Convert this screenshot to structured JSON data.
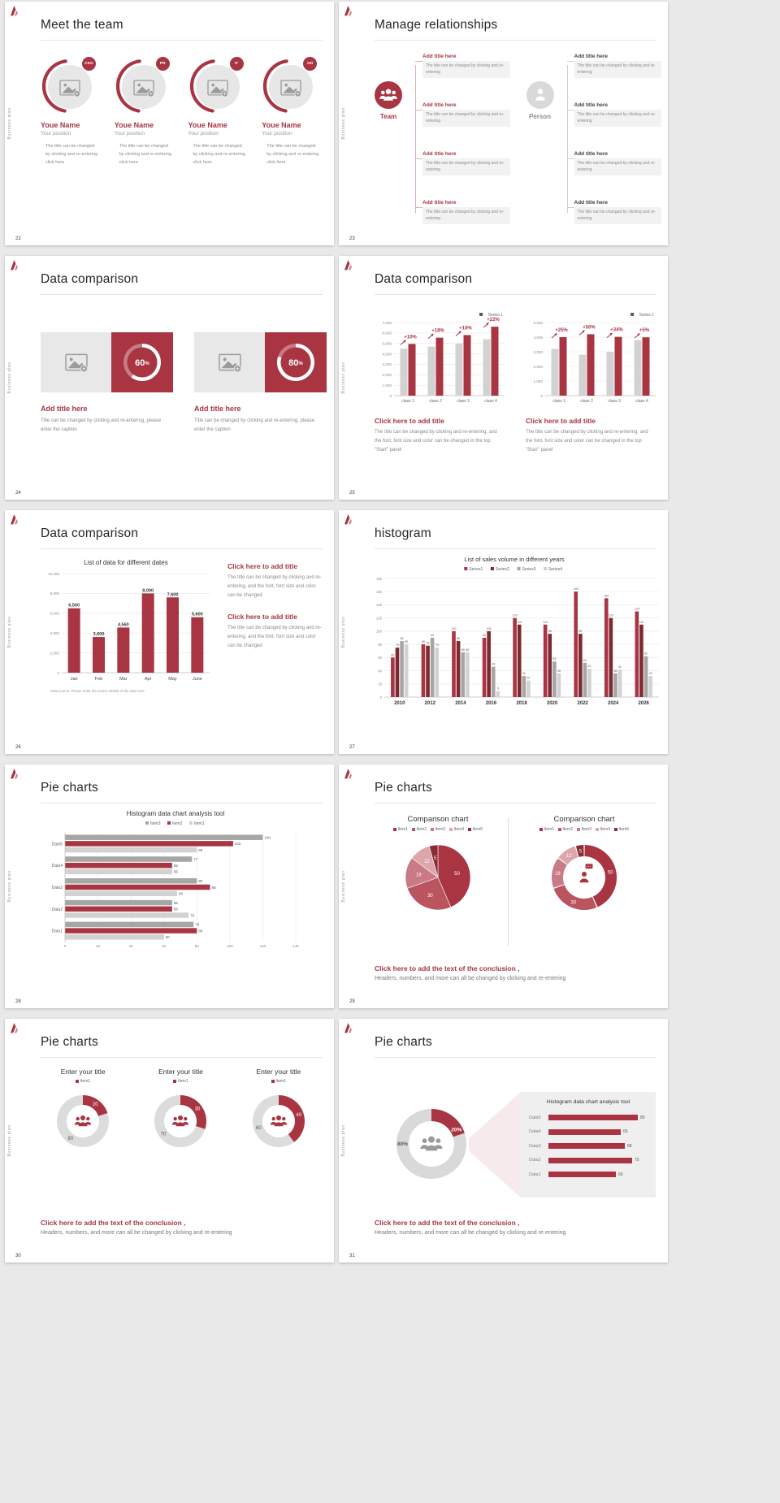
{
  "colors": {
    "accent": "#A93543",
    "accent_dark": "#7E2830",
    "gray": "#A6A6A6",
    "gray_light": "#D2D2D2",
    "page_bg": "#E9E9E9",
    "panel_bg": "#F0EFEF"
  },
  "sidebar_text": "Business plan",
  "icons": {
    "logo": "brand-mark",
    "team": "people-group-icon",
    "person": "person-icon",
    "avatar": "image-placeholder-icon",
    "donut_center": "people-group-icon",
    "donut29_center": "person-speaking-icon"
  },
  "conclusion": {
    "title": "Click here to add the text of the conclusion ,",
    "sub": "Headers, numbers, and more can all be changed by clicking and re-entering"
  },
  "slides": {
    "s22": {
      "page": "22",
      "title": "Meet the team",
      "members": [
        {
          "badge": "CEO",
          "name": "Youe Name",
          "position": "Your position",
          "desc": "The title can be changed by clicking and re-entering click here"
        },
        {
          "badge": "PR",
          "name": "Youe Name",
          "position": "Your position",
          "desc": "The title can be changed by clicking and re-entering click here"
        },
        {
          "badge": "IT",
          "name": "Youe Name",
          "position": "Your position",
          "desc": "The title can be changed by clicking and re-entering click here"
        },
        {
          "badge": "GD",
          "name": "Youe Name",
          "position": "Your position",
          "desc": "The title can be changed by clicking and re-entering click here"
        }
      ]
    },
    "s23": {
      "page": "23",
      "title": "Manage relationships",
      "team_label": "Team",
      "person_label": "Person",
      "item_title": "Add title here",
      "item_desc": "The title can be changed by clicking and re-entering"
    },
    "s24": {
      "page": "24",
      "title": "Data comparison",
      "card_title": "Add title here",
      "card_desc": "Title can be changed by clicking and re-entering, please enter the caption"
    },
    "s25": {
      "page": "25",
      "title": "Data comparison",
      "block_title": "Click here to add title",
      "block_desc": "The title can be changed by clicking and re-entering, and the font, font size and color can be changed in the top \"Start\" panel"
    },
    "s26": {
      "page": "26",
      "title": "Data comparison",
      "block_title": "Click here to add title",
      "block_desc": "The title can be changed by clicking and re-entering, and the font, font size and color can be changed"
    },
    "s27": {
      "page": "27",
      "title": "histogram"
    },
    "s28": {
      "page": "28",
      "title": "Pie charts"
    },
    "s29": {
      "page": "29",
      "title": "Pie charts"
    },
    "s30": {
      "page": "30",
      "title": "Pie charts"
    },
    "s31": {
      "page": "31",
      "title": "Pie charts"
    }
  },
  "chart_data": [
    {
      "id": "donut60",
      "type": "donut",
      "values": [
        60,
        40
      ],
      "center_label": "60%",
      "colors": [
        "#FFFFFF",
        "rgba(255,255,255,0.35)"
      ]
    },
    {
      "id": "donut80",
      "type": "donut",
      "values": [
        80,
        20
      ],
      "center_label": "80%",
      "colors": [
        "#FFFFFF",
        "rgba(255,255,255,0.35)"
      ]
    },
    {
      "id": "bars25a",
      "type": "bar",
      "legend": [
        {
          "label": "Series 1",
          "color": "#595959"
        }
      ],
      "categories": [
        "class 1",
        "class 2",
        "class 3",
        "class 4"
      ],
      "series": [
        {
          "name": "previous",
          "color": "#D2D2D2",
          "values": [
            4500,
            4700,
            5000,
            5400
          ]
        },
        {
          "name": "Series 1",
          "color": "#A93543",
          "values": [
            4950,
            5550,
            5800,
            6600
          ]
        }
      ],
      "annotations": [
        "+10%",
        "+18%",
        "+16%",
        "+22%"
      ],
      "ylim": [
        0,
        7000
      ],
      "ystep": 1000
    },
    {
      "id": "bars25b",
      "type": "bar",
      "legend": [
        {
          "label": "Series 1",
          "color": "#595959"
        }
      ],
      "categories": [
        "class 1",
        "class 2",
        "class 3",
        "class 4"
      ],
      "series": [
        {
          "name": "previous",
          "color": "#D2D2D2",
          "values": [
            3200,
            2800,
            3000,
            3800
          ]
        },
        {
          "name": "Series 1",
          "color": "#A93543",
          "values": [
            4000,
            4200,
            4020,
            3990
          ]
        }
      ],
      "annotations": [
        "+25%",
        "+50%",
        "+34%",
        "+5%"
      ],
      "ylim": [
        0,
        5000
      ],
      "ystep": 1000
    },
    {
      "id": "bars26",
      "type": "bar",
      "title": "List of data for different dates",
      "categories": [
        "Jan",
        "Feb",
        "Mar",
        "Apr",
        "May",
        "June"
      ],
      "series": [
        {
          "name": "data",
          "color": "#A93543",
          "values": [
            6500,
            3600,
            4560,
            8000,
            7600,
            5600
          ]
        }
      ],
      "ylim": [
        0,
        10000
      ],
      "ystep": 2000,
      "source": "Data source: Please enter the source details of the data here"
    },
    {
      "id": "bars27",
      "type": "bar",
      "title": "List of sales volume in different years",
      "legend": [
        {
          "label": "Series1",
          "color": "#A93543"
        },
        {
          "label": "Series2",
          "color": "#7E2830"
        },
        {
          "label": "Series3",
          "color": "#A6A6A6"
        },
        {
          "label": "Series4",
          "color": "#D2D2D2"
        }
      ],
      "categories": [
        "2010",
        "2012",
        "2014",
        "2016",
        "2018",
        "2020",
        "2022",
        "2024",
        "2026"
      ],
      "series": [
        {
          "name": "Series1",
          "color": "#A93543",
          "values": [
            60,
            80,
            100,
            90,
            120,
            110,
            160,
            150,
            130
          ]
        },
        {
          "name": "Series2",
          "color": "#7E2830",
          "values": [
            75,
            78,
            85,
            100,
            110,
            96,
            96,
            120,
            110
          ]
        },
        {
          "name": "Series3",
          "color": "#A6A6A6",
          "values": [
            85,
            90,
            68,
            46,
            32,
            54,
            52,
            36,
            62
          ]
        },
        {
          "name": "Series4",
          "color": "#D2D2D2",
          "values": [
            80,
            75,
            68,
            9,
            25,
            36,
            43,
            42,
            32
          ]
        }
      ],
      "ylim": [
        0,
        180
      ],
      "ystep": 20
    },
    {
      "id": "hbar28",
      "type": "hbar",
      "title": "Histogram data chart analysis tool",
      "legend": [
        {
          "label": "Item3",
          "color": "#A6A6A6"
        },
        {
          "label": "Item2",
          "color": "#A93543"
        },
        {
          "label": "Item1",
          "color": "#D2D2D2"
        }
      ],
      "categories": [
        "Data5",
        "Data4",
        "Data3",
        "Data2",
        "Data1"
      ],
      "series": [
        {
          "name": "Item3",
          "color": "#A6A6A6",
          "values": [
            120,
            77,
            80,
            65,
            78
          ]
        },
        {
          "name": "Item2",
          "color": "#A93543",
          "values": [
            102,
            65,
            88,
            65,
            80
          ]
        },
        {
          "name": "Item1",
          "color": "#D2D2D2",
          "values": [
            80,
            65,
            68,
            75,
            60
          ]
        }
      ],
      "xlim": [
        0,
        140
      ],
      "xstep": 20
    },
    {
      "id": "pie29",
      "type": "pie",
      "title": "Comparison chart",
      "legend": [
        {
          "label": "Item1",
          "color": "#A93543"
        },
        {
          "label": "Item2",
          "color": "#BA5560"
        },
        {
          "label": "Item3",
          "color": "#C97A84"
        },
        {
          "label": "Item4",
          "color": "#DBA6AC"
        },
        {
          "label": "Item5",
          "color": "#8C2B35"
        }
      ],
      "values": [
        50,
        30,
        18,
        12,
        5
      ],
      "colors": [
        "#A93543",
        "#BA5560",
        "#C97A84",
        "#DBA6AC",
        "#8C2B35"
      ]
    },
    {
      "id": "donut29",
      "type": "donut",
      "title": "Comparison chart",
      "legend": [
        {
          "label": "Item1",
          "color": "#A93543"
        },
        {
          "label": "Item2",
          "color": "#BA5560"
        },
        {
          "label": "Item3",
          "color": "#C97A84"
        },
        {
          "label": "Item4",
          "color": "#DBA6AC"
        },
        {
          "label": "Item5",
          "color": "#8C2B35"
        }
      ],
      "values": [
        50,
        30,
        18,
        12,
        5
      ],
      "colors": [
        "#A93543",
        "#BA5560",
        "#C97A84",
        "#DBA6AC",
        "#8C2B35"
      ],
      "gap": 1,
      "center_icon": "person-bubble"
    },
    {
      "id": "donut30a",
      "type": "donut",
      "title": "Enter your title",
      "legend": [
        {
          "label": "Item1",
          "color": "#A93543"
        }
      ],
      "values": [
        20,
        80
      ],
      "colors": [
        "#A93543",
        "#DCDCDC"
      ],
      "slice_label_colors": [
        "#FFFFFF",
        "#595959"
      ],
      "center_icon": "people"
    },
    {
      "id": "donut30b",
      "type": "donut",
      "title": "Enter your title",
      "legend": [
        {
          "label": "Item1",
          "color": "#A93543"
        }
      ],
      "values": [
        30,
        70
      ],
      "colors": [
        "#A93543",
        "#DCDCDC"
      ],
      "slice_label_colors": [
        "#FFFFFF",
        "#595959"
      ],
      "center_icon": "people"
    },
    {
      "id": "donut30c",
      "type": "donut",
      "title": "Enter your title",
      "legend": [
        {
          "label": "Item1",
          "color": "#A93543"
        }
      ],
      "values": [
        40,
        60
      ],
      "colors": [
        "#A93543",
        "#DCDCDC"
      ],
      "slice_label_colors": [
        "#FFFFFF",
        "#595959"
      ],
      "center_icon": "people"
    },
    {
      "id": "donut31",
      "type": "donut",
      "values": [
        20,
        80
      ],
      "slice_labels": [
        "20%",
        "80%"
      ],
      "colors": [
        "#A93543",
        "#D9D9D9"
      ],
      "slice_label_colors": [
        "#FFFFFF",
        "#595959"
      ],
      "label_angles": [
        60,
        270
      ],
      "center_icon": "people-gray",
      "icon_color": "#9A9A9A"
    },
    {
      "id": "hbar31",
      "type": "hbar",
      "title": "Histogram data chart analysis tool",
      "categories": [
        "Data5",
        "Data4",
        "Data3",
        "Data2",
        "Data1"
      ],
      "values": [
        80,
        65,
        68,
        75,
        60
      ],
      "color": "#A93543"
    }
  ]
}
